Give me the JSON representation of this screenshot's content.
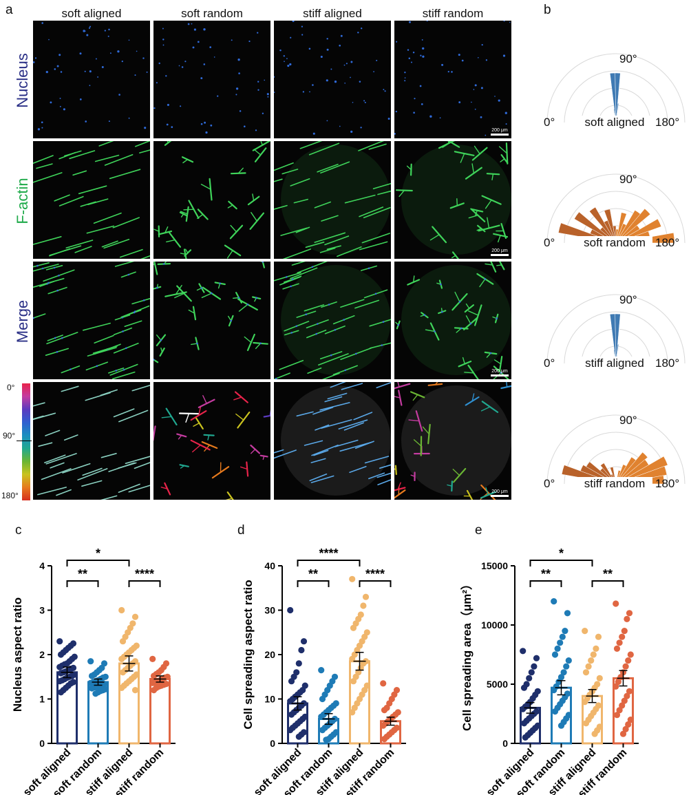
{
  "panel_letters": {
    "a": "a",
    "b": "b",
    "c": "c",
    "d": "d",
    "e": "e"
  },
  "columns": [
    "soft aligned",
    "soft random",
    "stiff aligned",
    "stiff random"
  ],
  "rows": [
    {
      "label": "Nucleus",
      "color": "#2a2f86"
    },
    {
      "label": "F-actin",
      "color": "#1faa4a"
    },
    {
      "label": "Merge",
      "color": "#2a2f86"
    },
    {
      "label": "",
      "color": "#000000"
    }
  ],
  "colorbar": {
    "top": "0°",
    "mid": "90°",
    "bottom": "180°"
  },
  "scale_bar": "200 μm",
  "polar": [
    {
      "label": "soft aligned",
      "left": "0°",
      "top": "90°",
      "right": "180°",
      "color": "#3f7ab3",
      "type": "aligned"
    },
    {
      "label": "soft random",
      "left": "0°",
      "top": "90°",
      "right": "180°",
      "color": "#d9782a",
      "type": "random"
    },
    {
      "label": "stiff aligned",
      "left": "0°",
      "top": "90°",
      "right": "180°",
      "color": "#3f7ab3",
      "type": "aligned"
    },
    {
      "label": "stiff random",
      "left": "0°",
      "top": "90°",
      "right": "180°",
      "color": "#d9782a",
      "type": "random"
    }
  ],
  "chart_data": [
    {
      "type": "bar",
      "panel": "c",
      "categories": [
        "soft aligned",
        "soft random",
        "stiff aligned",
        "stiff random"
      ],
      "values": [
        1.6,
        1.38,
        1.8,
        1.45
      ],
      "errors": [
        0.12,
        0.07,
        0.17,
        0.07
      ],
      "colors": [
        "#1f2f6b",
        "#1e7bb6",
        "#f0b66c",
        "#e06642"
      ],
      "ylabel": "Nucleus aspect ratio",
      "ylim": [
        0,
        4
      ],
      "yticks": [
        0,
        1,
        2,
        3,
        4
      ],
      "points": [
        [
          2.3,
          2.25,
          2.2,
          2.15,
          2.1,
          2.05,
          2.0,
          1.95,
          1.9,
          1.85,
          1.8,
          1.78,
          1.75,
          1.72,
          1.7,
          1.68,
          1.65,
          1.62,
          1.6,
          1.58,
          1.55,
          1.52,
          1.5,
          1.48,
          1.45,
          1.42,
          1.4,
          1.38,
          1.35,
          1.3,
          1.25,
          1.2,
          1.15
        ],
        [
          1.85,
          1.8,
          1.7,
          1.65,
          1.6,
          1.55,
          1.52,
          1.5,
          1.48,
          1.45,
          1.42,
          1.4,
          1.38,
          1.36,
          1.34,
          1.32,
          1.3,
          1.28,
          1.26,
          1.24,
          1.22,
          1.2,
          1.18,
          1.15,
          1.12
        ],
        [
          3.0,
          2.85,
          2.7,
          2.6,
          2.5,
          2.4,
          2.3,
          2.2,
          2.15,
          2.1,
          2.05,
          2.0,
          1.95,
          1.9,
          1.85,
          1.8,
          1.75,
          1.7,
          1.65,
          1.6,
          1.55,
          1.5,
          1.45,
          1.4,
          1.35,
          1.3,
          1.25,
          1.2
        ],
        [
          1.9,
          1.8,
          1.72,
          1.65,
          1.6,
          1.56,
          1.52,
          1.5,
          1.48,
          1.45,
          1.42,
          1.4,
          1.38,
          1.36,
          1.34,
          1.32,
          1.3,
          1.28,
          1.25,
          1.2
        ]
      ],
      "sig": [
        {
          "from": 0,
          "to": 1,
          "label": "**",
          "level": 1
        },
        {
          "from": 2,
          "to": 3,
          "label": "****",
          "level": 1
        },
        {
          "from": 0,
          "to": 2,
          "label": "*",
          "level": 2
        }
      ]
    },
    {
      "type": "bar",
      "panel": "d",
      "categories": [
        "soft aligned",
        "soft random",
        "stiff aligned",
        "stiff random"
      ],
      "values": [
        9,
        5.5,
        18.5,
        5
      ],
      "errors": [
        1.5,
        1.2,
        2.0,
        0.9
      ],
      "colors": [
        "#1f2f6b",
        "#1e7bb6",
        "#f0b66c",
        "#e06642"
      ],
      "ylabel": "Cell spreading aspect ratio",
      "ylim": [
        0,
        40
      ],
      "yticks": [
        0,
        10,
        20,
        30,
        40
      ],
      "points": [
        [
          30,
          23,
          21,
          18,
          16,
          15,
          14,
          13,
          12,
          11.5,
          11,
          10.5,
          10,
          9.5,
          9,
          8.5,
          8,
          7.5,
          7,
          6.5,
          6,
          5.5,
          5,
          4.5,
          4,
          3.5,
          3,
          2.5,
          2,
          1.5
        ],
        [
          16.5,
          15,
          14,
          13,
          12,
          11,
          10,
          9,
          8.5,
          8,
          7.5,
          7,
          6.5,
          6,
          5.5,
          5,
          4.5,
          4,
          3.5,
          3,
          2.5,
          2,
          1.5,
          1,
          0.8
        ],
        [
          37,
          33,
          31,
          29,
          28,
          27,
          26,
          25,
          24,
          23,
          22,
          21,
          20,
          19,
          18.5,
          18,
          17,
          16,
          15,
          14,
          13,
          12,
          11,
          10,
          9,
          8,
          7
        ],
        [
          13.5,
          12,
          11,
          10,
          9,
          8,
          7.5,
          7,
          6.5,
          6,
          5.5,
          5,
          4.5,
          4,
          3.5,
          3,
          2.5,
          2,
          1.5,
          1
        ]
      ],
      "sig": [
        {
          "from": 0,
          "to": 1,
          "label": "**",
          "level": 1
        },
        {
          "from": 2,
          "to": 3,
          "label": "****",
          "level": 1
        },
        {
          "from": 0,
          "to": 2,
          "label": "****",
          "level": 2
        }
      ]
    },
    {
      "type": "bar",
      "panel": "e",
      "categories": [
        "soft aligned",
        "soft random",
        "stiff aligned",
        "stiff random"
      ],
      "values": [
        3000,
        4700,
        4000,
        5500
      ],
      "errors": [
        450,
        600,
        550,
        650
      ],
      "colors": [
        "#1f2f6b",
        "#1e7bb6",
        "#f0b66c",
        "#e06642"
      ],
      "ylabel": "Cell spreading area（μm²）",
      "ylim": [
        0,
        15000
      ],
      "yticks": [
        0,
        5000,
        10000,
        15000
      ],
      "points": [
        [
          7800,
          7200,
          6500,
          6000,
          5500,
          5000,
          4700,
          4400,
          4100,
          3800,
          3500,
          3300,
          3100,
          2900,
          2700,
          2500,
          2300,
          2100,
          1900,
          1700,
          1500,
          1300,
          1100,
          900,
          700,
          500
        ],
        [
          12000,
          11000,
          9500,
          9000,
          8500,
          8000,
          7500,
          7000,
          6500,
          6000,
          5600,
          5200,
          4800,
          4500,
          4200,
          3900,
          3600,
          3300,
          3000,
          2700,
          2400,
          2100,
          1800,
          1500
        ],
        [
          9500,
          9000,
          8000,
          7500,
          7000,
          6500,
          6000,
          5500,
          5000,
          4700,
          4400,
          4100,
          3800,
          3500,
          3200,
          2900,
          2600,
          2300,
          2000,
          1700,
          1400,
          1100,
          800
        ],
        [
          11800,
          11000,
          10500,
          9500,
          9000,
          8500,
          8000,
          7500,
          7000,
          6500,
          6000,
          5600,
          5200,
          4800,
          4400,
          4000,
          3600,
          3200,
          2800,
          2400,
          2000,
          1600,
          1200,
          800
        ]
      ],
      "sig": [
        {
          "from": 0,
          "to": 1,
          "label": "**",
          "level": 1
        },
        {
          "from": 2,
          "to": 3,
          "label": "**",
          "level": 1
        },
        {
          "from": 0,
          "to": 2,
          "label": "*",
          "level": 2
        }
      ]
    }
  ]
}
